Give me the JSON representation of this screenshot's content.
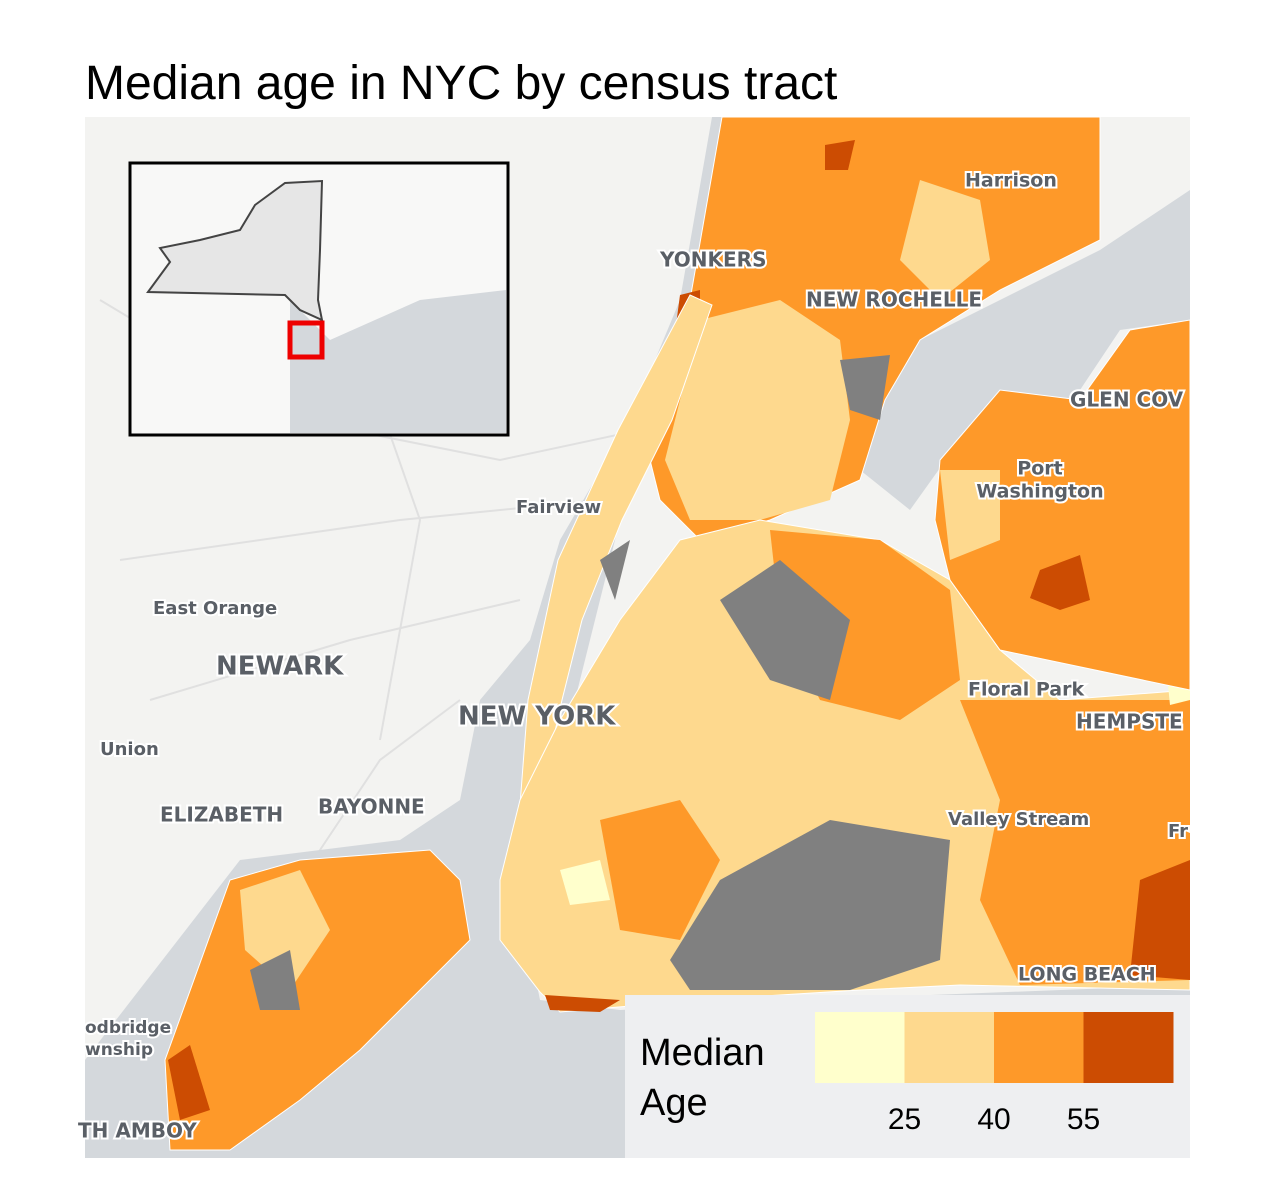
{
  "title": "Median age in NYC by census tract",
  "places": [
    "Harrison",
    "YONKERS",
    "NEW ROCHELLE",
    "GLEN COV",
    "Port",
    "Washington",
    "Fairview",
    "East Orange",
    "NEWARK",
    "NEW YORK",
    "Floral Park",
    "HEMPSTE",
    "Union",
    "ELIZABETH",
    "BAYONNE",
    "Valley Stream",
    "Fr",
    "LONG BEACH",
    "odbridge",
    "wnship",
    "TH AMBOY"
  ],
  "legend": {
    "title": "Median Age",
    "colors": [
      "#ffffcc",
      "#fed98e",
      "#fe9929",
      "#cc4c02"
    ],
    "breaks": [
      25,
      40,
      55
    ],
    "no_data_color": "#808080"
  }
}
